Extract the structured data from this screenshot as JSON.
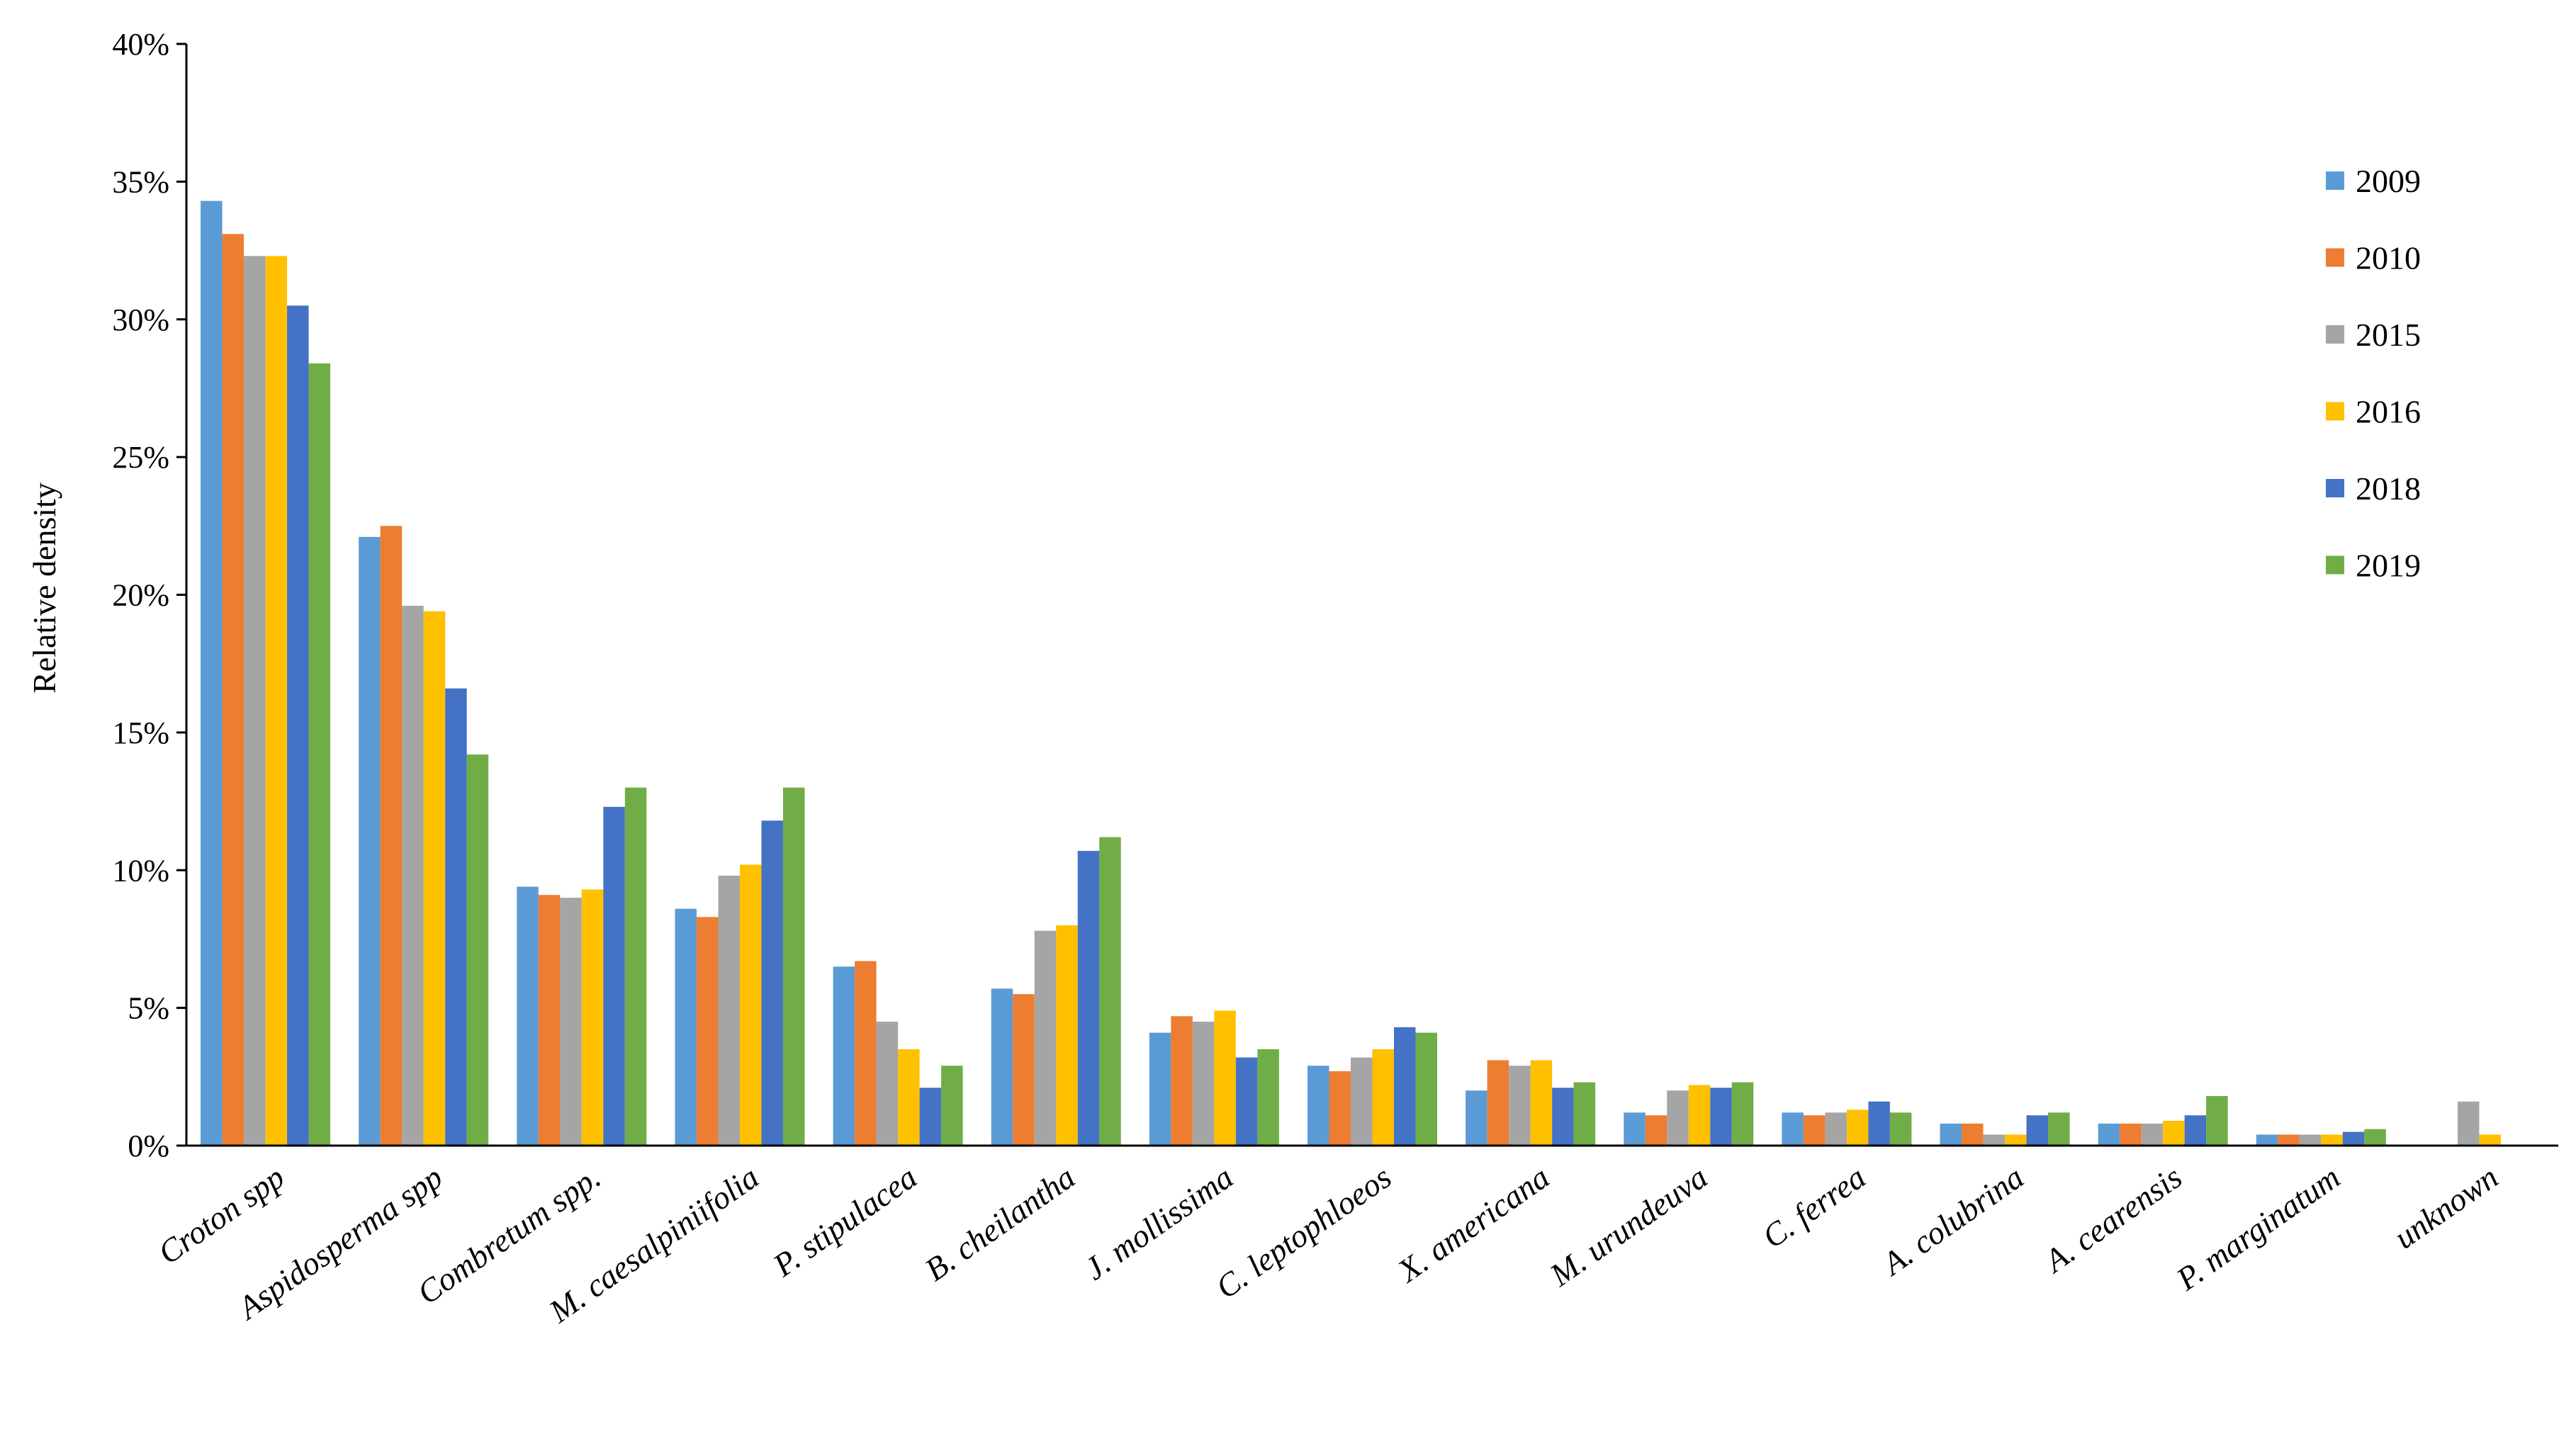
{
  "chart_data": {
    "type": "bar",
    "title": "",
    "xlabel": "",
    "ylabel": "Relative density",
    "ylim": [
      0,
      40
    ],
    "ytick_values": [
      0,
      5,
      10,
      15,
      20,
      25,
      30,
      35,
      40
    ],
    "ytick_labels": [
      "0%",
      "5%",
      "10%",
      "15%",
      "20%",
      "25%",
      "30%",
      "35%",
      "40%"
    ],
    "grid": false,
    "legend_position": "right",
    "categories": [
      "Croton spp",
      "Aspidosperma spp",
      "Combretum spp.",
      "M. caesalpiniifolia",
      "P. stipulacea",
      "B. cheilantha",
      "J. mollissima",
      "C. leptophloeos",
      "X. americana",
      "M. urundeuva",
      "C. ferrea",
      "A. colubrina",
      "A. cearensis",
      "P. marginatum",
      "unknown"
    ],
    "series": [
      {
        "name": "2009",
        "color": "#5B9BD5",
        "values": [
          34.3,
          22.1,
          9.4,
          8.6,
          6.5,
          5.7,
          4.1,
          2.9,
          2.0,
          1.2,
          1.2,
          0.8,
          0.8,
          0.4,
          0
        ]
      },
      {
        "name": "2010",
        "color": "#ED7D31",
        "values": [
          33.1,
          22.5,
          9.1,
          8.3,
          6.7,
          5.5,
          4.7,
          2.7,
          3.1,
          1.1,
          1.1,
          0.8,
          0.8,
          0.4,
          0
        ]
      },
      {
        "name": "2015",
        "color": "#A5A5A5",
        "values": [
          32.3,
          19.6,
          9.0,
          9.8,
          4.5,
          7.8,
          4.5,
          3.2,
          2.9,
          2.0,
          1.2,
          0.4,
          0.8,
          0.4,
          1.6
        ]
      },
      {
        "name": "2016",
        "color": "#FFC000",
        "values": [
          32.3,
          19.4,
          9.3,
          10.2,
          3.5,
          8.0,
          4.9,
          3.5,
          3.1,
          2.2,
          1.3,
          0.4,
          0.9,
          0.4,
          0.4
        ]
      },
      {
        "name": "2018",
        "color": "#4472C4",
        "values": [
          30.5,
          16.6,
          12.3,
          11.8,
          2.1,
          10.7,
          3.2,
          4.3,
          2.1,
          2.1,
          1.6,
          1.1,
          1.1,
          0.5,
          0
        ]
      },
      {
        "name": "2019",
        "color": "#70AD47",
        "values": [
          28.4,
          14.2,
          13.0,
          13.0,
          2.9,
          11.2,
          3.5,
          4.1,
          2.3,
          2.3,
          1.2,
          1.2,
          1.8,
          0.6,
          0
        ]
      }
    ]
  }
}
